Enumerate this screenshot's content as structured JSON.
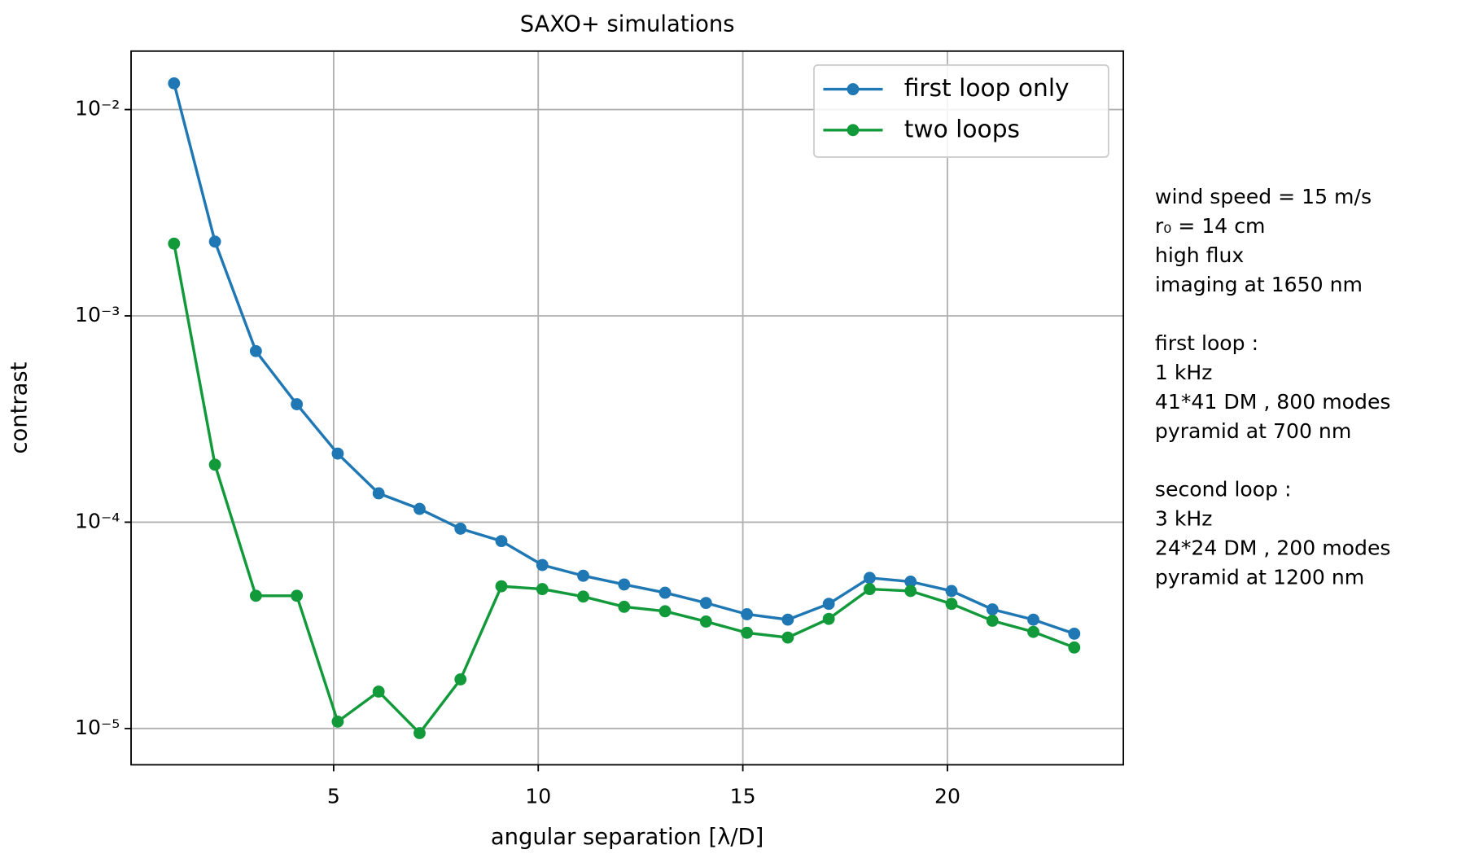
{
  "chart_data": {
    "type": "line",
    "title": "SAXO+ simulations",
    "xlabel": "angular separation [λ/D]",
    "ylabel": "contrast",
    "x": [
      1.1,
      2.1,
      3.1,
      4.1,
      5.1,
      6.1,
      7.1,
      8.1,
      9.1,
      10.1,
      11.1,
      12.1,
      13.1,
      14.1,
      15.1,
      16.1,
      17.1,
      18.1,
      19.1,
      20.1,
      21.1,
      22.1,
      23.1
    ],
    "series": [
      {
        "name": "first loop only",
        "color": "#1f77b4",
        "values": [
          0.0134,
          0.00229,
          0.000675,
          0.000373,
          0.000215,
          0.000138,
          0.000116,
          9.3e-05,
          8.1e-05,
          6.2e-05,
          5.5e-05,
          4.99e-05,
          4.55e-05,
          4.06e-05,
          3.58e-05,
          3.37e-05,
          4.02e-05,
          5.37e-05,
          5.15e-05,
          4.64e-05,
          3.78e-05,
          3.37e-05,
          2.88e-05
        ]
      },
      {
        "name": "two loops",
        "color": "#11993a",
        "values": [
          0.00224,
          0.00019,
          4.4e-05,
          4.4e-05,
          1.08e-05,
          1.51e-05,
          9.5e-06,
          1.73e-05,
          4.89e-05,
          4.74e-05,
          4.36e-05,
          3.89e-05,
          3.7e-05,
          3.3e-05,
          2.91e-05,
          2.76e-05,
          3.4e-05,
          4.74e-05,
          4.64e-05,
          4.02e-05,
          3.33e-05,
          2.94e-05,
          2.47e-05
        ]
      }
    ],
    "xlim": [
      0.05,
      24.3
    ],
    "xticks": [
      5,
      10,
      15,
      20
    ],
    "ylim": [
      6.67e-06,
      0.0192
    ],
    "yticks": [
      {
        "value": 0.01,
        "label": "10⁻²"
      },
      {
        "value": 0.001,
        "label": "10⁻³"
      },
      {
        "value": 0.0001,
        "label": "10⁻⁴"
      },
      {
        "value": 1e-05,
        "label": "10⁻⁵"
      }
    ],
    "log_y": true,
    "grid": true,
    "legend": "upper right",
    "annotation": [
      [
        "wind speed = 15 m/s",
        "r₀ = 14 cm",
        "high flux",
        "imaging at 1650 nm"
      ],
      [
        "first loop :",
        "1 kHz",
        "41*41 DM , 800 modes",
        "pyramid at 700 nm"
      ],
      [
        "second loop :",
        "3 kHz",
        "24*24 DM , 200 modes",
        "pyramid at 1200 nm"
      ]
    ]
  }
}
